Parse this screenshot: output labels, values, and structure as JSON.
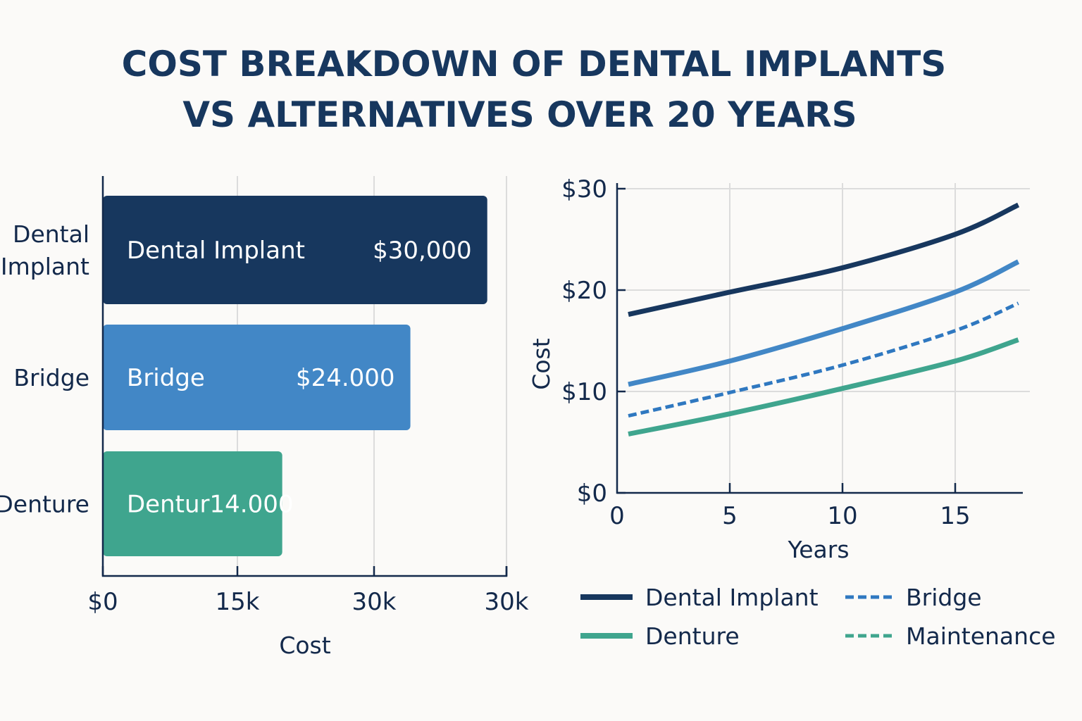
{
  "title_lines": [
    "COST BREAKDOWN OF DENTAL IMPLANTS",
    "VS ALTERNATIVES OVER 20 YEARS"
  ],
  "colors": {
    "navy": "#17375e",
    "blue": "#4287c6",
    "green": "#3fa58e",
    "text": "#13294b"
  },
  "chart_data": [
    {
      "type": "bar",
      "orientation": "horizontal",
      "categories": [
        "Dental Implant",
        "Bridge",
        "Denture"
      ],
      "category_labels": [
        [
          "Dental",
          "Implant"
        ],
        [
          "Bridge"
        ],
        [
          "Denture"
        ]
      ],
      "values": [
        30000,
        24000,
        14000
      ],
      "bar_names": [
        "Dental Implant",
        "Bridge",
        ""
      ],
      "data_labels": [
        "$30,000",
        "$24.000",
        "Dentur14.000"
      ],
      "colors": [
        "#17375e",
        "#4287c6",
        "#3fa58e"
      ],
      "xlabel": "Cost",
      "xtick_labels": [
        "$0",
        "15k",
        "30k",
        "30k"
      ],
      "xlim": [
        0,
        31500
      ],
      "grid": true
    },
    {
      "type": "line",
      "xlabel": "Years",
      "ylabel": "Cost",
      "xlim": [
        0,
        18
      ],
      "ylim": [
        0,
        30
      ],
      "xticks": [
        0,
        5,
        10,
        15
      ],
      "xtick_labels": [
        "0",
        "5",
        "10",
        "15"
      ],
      "yticks": [
        0,
        10,
        20,
        30
      ],
      "ytick_labels": [
        "$0",
        "$10",
        "$20",
        "$30"
      ],
      "grid": true,
      "series": [
        {
          "name": "Dental Implant",
          "color": "#17375e",
          "dash": false,
          "x": [
            0.5,
            5,
            10,
            15,
            17.8
          ],
          "y": [
            17.6,
            19.8,
            22.2,
            25.5,
            28.4
          ]
        },
        {
          "color": "#4287c6",
          "dash": false,
          "x": [
            0.5,
            5,
            10,
            15,
            17.8
          ],
          "y": [
            10.7,
            13.0,
            16.2,
            19.8,
            22.8
          ]
        },
        {
          "name": "Bridge",
          "color": "#2f78c0",
          "dash": true,
          "x": [
            0.5,
            5,
            10,
            15,
            17.8
          ],
          "y": [
            7.6,
            9.9,
            12.6,
            16.0,
            18.7
          ]
        },
        {
          "name": "Denture",
          "color": "#3fa58e",
          "dash": false,
          "x": [
            0.5,
            5,
            10,
            15,
            17.8
          ],
          "y": [
            5.8,
            7.8,
            10.3,
            13.0,
            15.1
          ]
        }
      ],
      "legend": {
        "position": "bottom",
        "items": [
          {
            "label": "Dental Implant",
            "color": "#17375e",
            "dash": false
          },
          {
            "label": "Bridge",
            "color": "#2f78c0",
            "dash": true
          },
          {
            "label": "Denture",
            "color": "#3fa58e",
            "dash": false
          },
          {
            "label": "Maintenance",
            "color": "#3fa58e",
            "dash": true
          }
        ]
      }
    }
  ]
}
